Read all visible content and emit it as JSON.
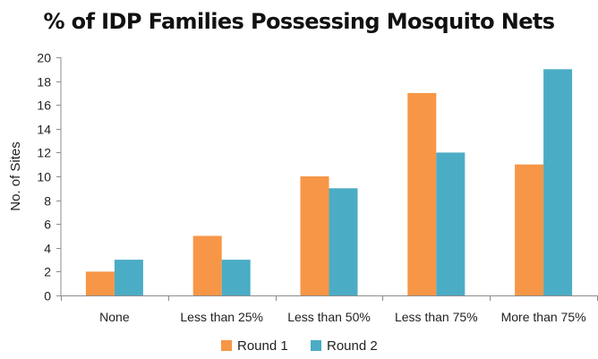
{
  "chart_data": {
    "type": "bar",
    "title": "% of IDP Families Possessing Mosquito Nets",
    "xlabel": "",
    "ylabel": "No. of Sites",
    "categories": [
      "None",
      "Less than 25%",
      "Less than 50%",
      "Less than 75%",
      "More than 75%"
    ],
    "series": [
      {
        "name": "Round 1",
        "values": [
          2,
          5,
          10,
          17,
          11
        ],
        "color": "#F79646"
      },
      {
        "name": "Round 2",
        "values": [
          3,
          3,
          9,
          12,
          19
        ],
        "color": "#4BACC6"
      }
    ],
    "ylim": [
      0,
      20
    ],
    "yticks": [
      0,
      2,
      4,
      6,
      8,
      10,
      12,
      14,
      16,
      18,
      20
    ],
    "grid": false,
    "legend_position": "bottom"
  }
}
